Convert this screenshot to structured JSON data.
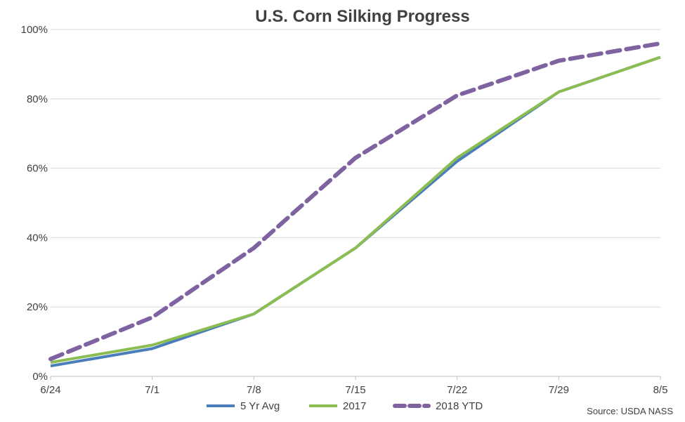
{
  "chart_data": {
    "type": "line",
    "title": "U.S. Corn Silking Progress",
    "xlabel": "",
    "ylabel": "",
    "categories": [
      "6/24",
      "7/1",
      "7/8",
      "7/15",
      "7/22",
      "7/29",
      "8/5"
    ],
    "ylim": [
      0,
      100
    ],
    "yticks": [
      "0%",
      "20%",
      "40%",
      "60%",
      "80%",
      "100%"
    ],
    "ytick_values": [
      0,
      20,
      40,
      60,
      80,
      100
    ],
    "grid": "horizontal",
    "legend_position": "bottom",
    "series": [
      {
        "name": "5 Yr Avg",
        "color": "#4a7ebb",
        "style": "solid",
        "values": [
          3,
          8,
          18,
          37,
          62,
          82,
          92
        ]
      },
      {
        "name": "2017",
        "color": "#8cbd53",
        "style": "solid",
        "values": [
          4,
          9,
          18,
          37,
          63,
          82,
          92
        ]
      },
      {
        "name": "2018 YTD",
        "color": "#7f63a1",
        "style": "dashed",
        "values": [
          5,
          17,
          37,
          63,
          81,
          91,
          96
        ]
      }
    ],
    "source": "Source: USDA NASS"
  }
}
